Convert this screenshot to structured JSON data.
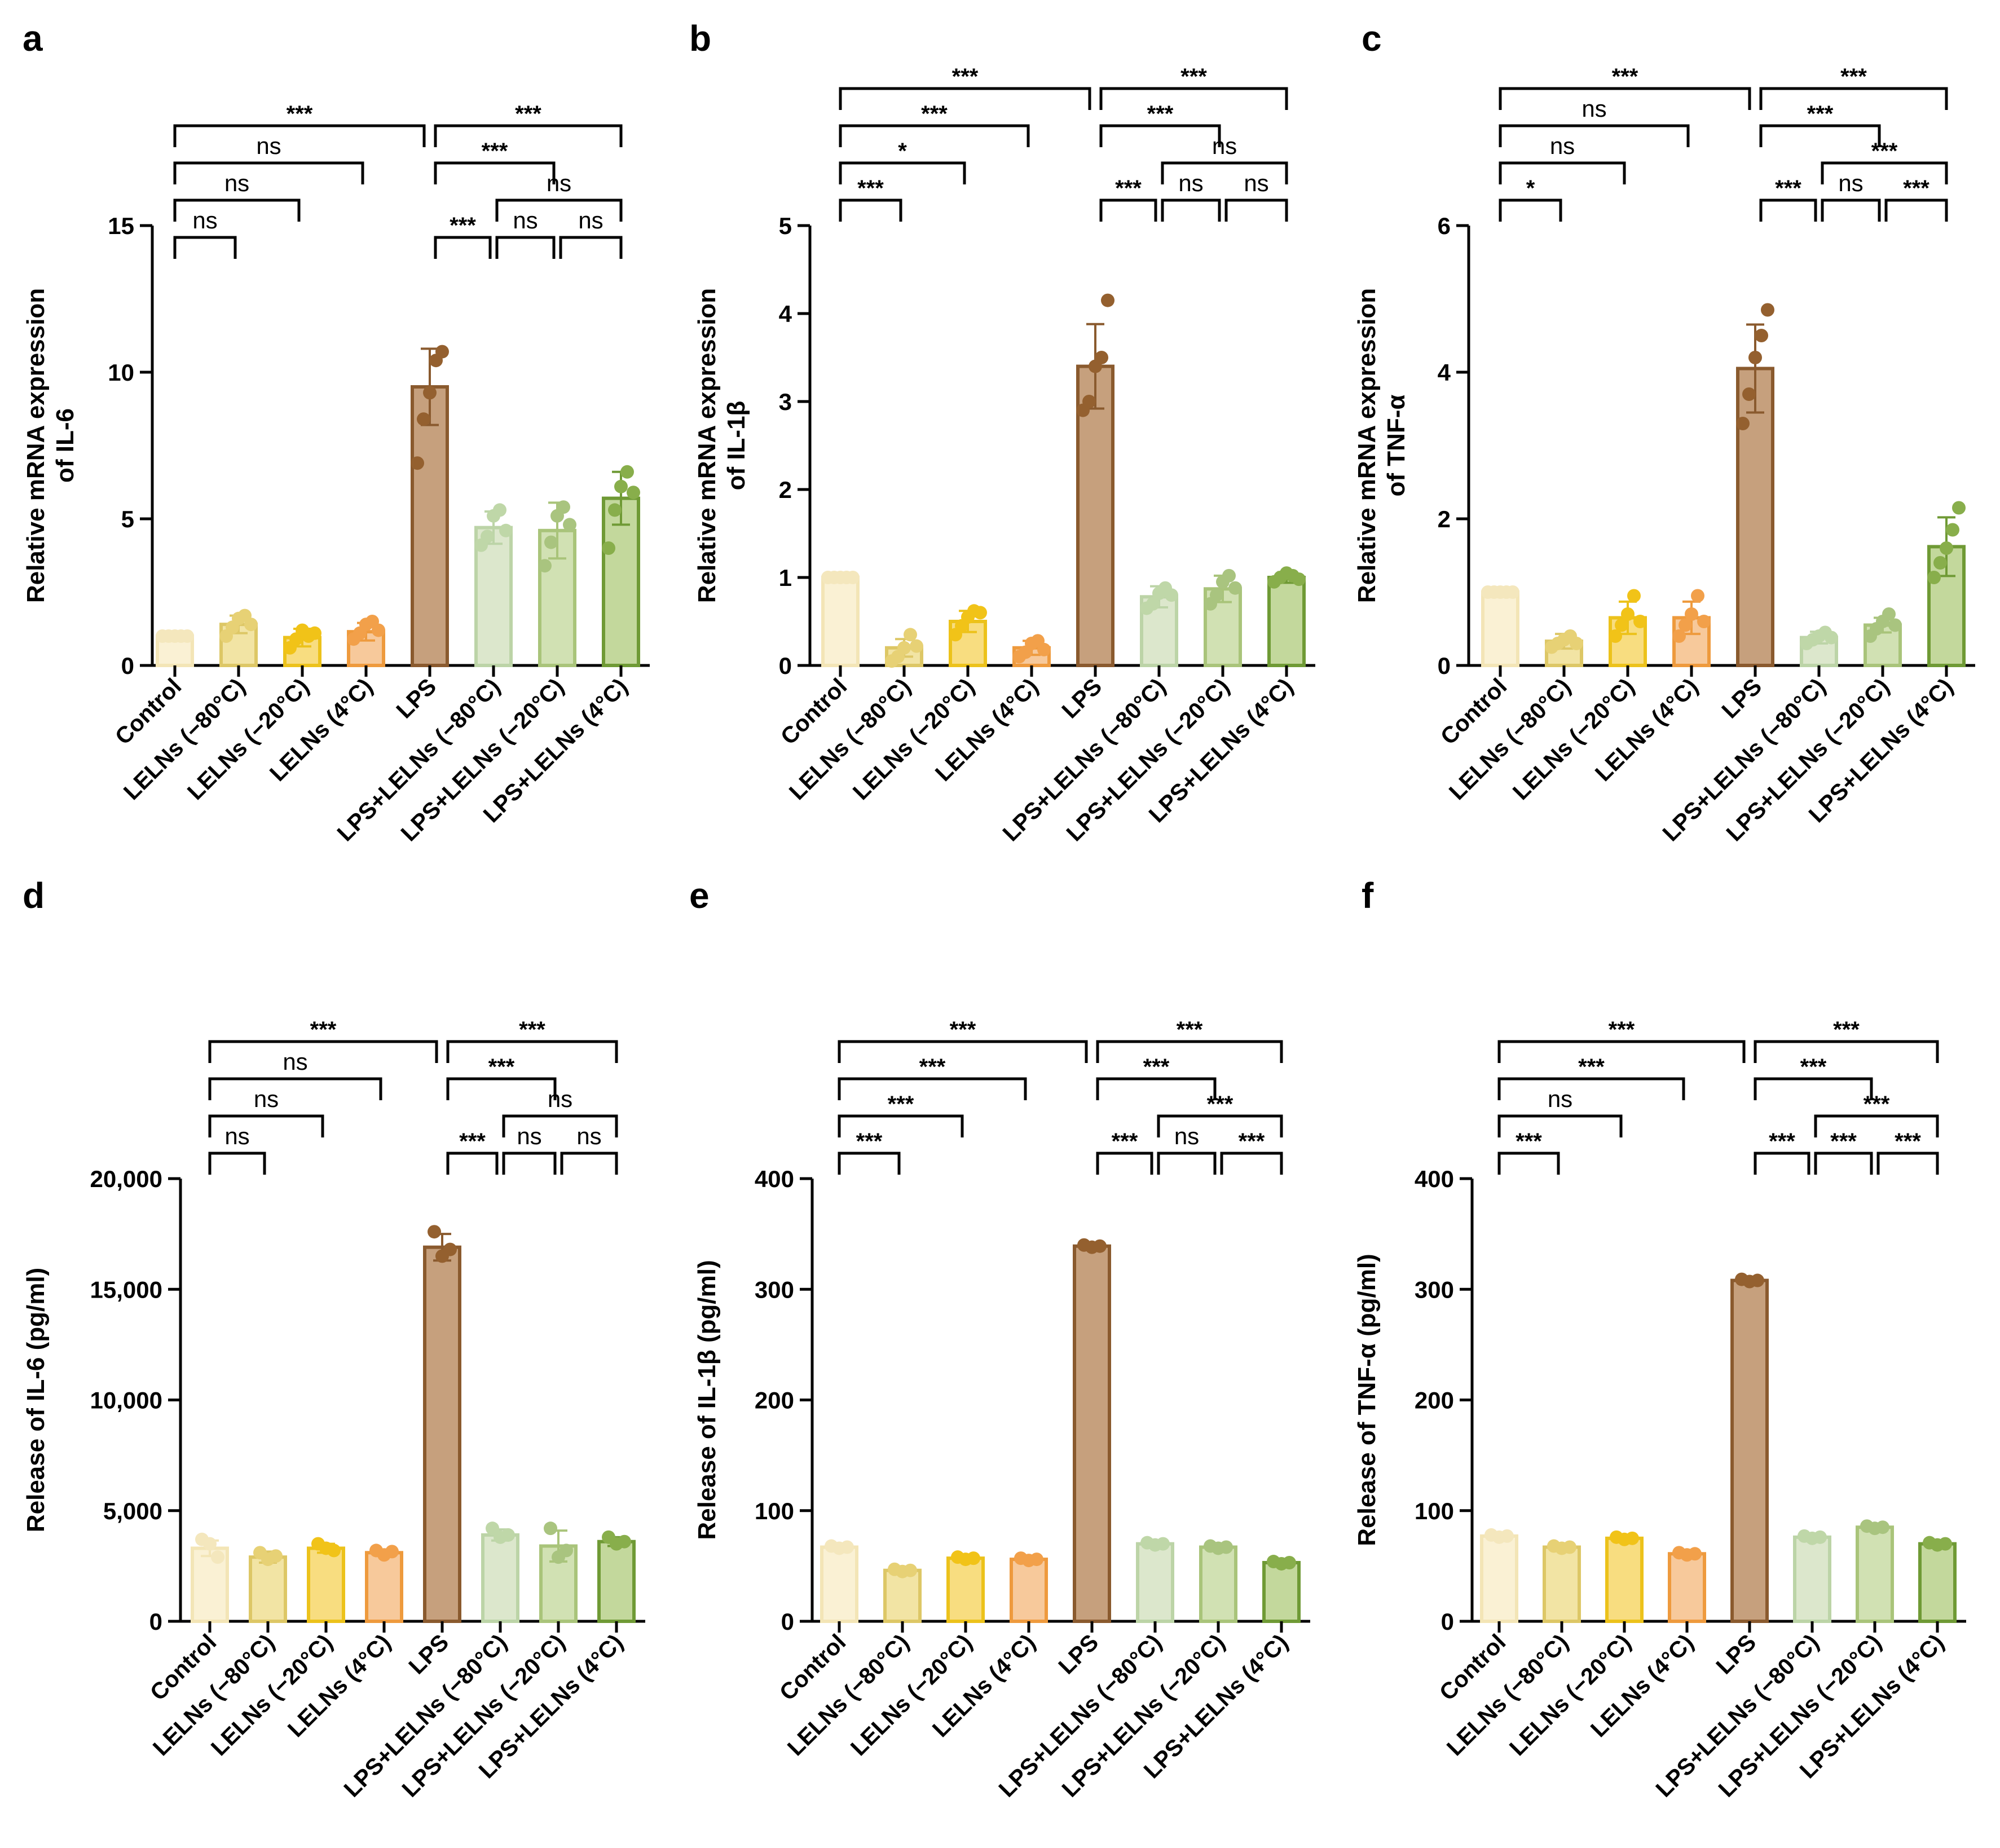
{
  "figure_title": "",
  "categories": [
    "Control",
    "LELNs (−80°C)",
    "LELNs (−20°C)",
    "LELNs (4°C)",
    "LPS",
    "LPS+LELNs (−80°C)",
    "LPS+LELNs (−20°C)",
    "LPS+LELNs (4°C)"
  ],
  "colors": {
    "fills": [
      "#faf1d4",
      "#f2e4a4",
      "#f8dd80",
      "#f7c99b",
      "#c6a07d",
      "#dce7cc",
      "#d1e1b3",
      "#c3d89c"
    ],
    "strokes": [
      "#f3e5b6",
      "#ddc766",
      "#ecc21b",
      "#ee9a3d",
      "#8a5a2e",
      "#bcd4a7",
      "#a9c47a",
      "#6f9a35"
    ],
    "dots": [
      "#f4e7bd",
      "#e7d175",
      "#f1c318",
      "#f2a04a",
      "#94602f",
      "#bfd7a8",
      "#a9c47f",
      "#88ae4b"
    ]
  },
  "chart_data": [
    {
      "type": "bar",
      "panel": "a",
      "ylabel_lines": [
        "Relative mRNA expression",
        "of IL-6"
      ],
      "ylim": [
        0,
        15
      ],
      "yticks": [
        "0",
        "5",
        "10",
        "15"
      ],
      "values": [
        1.0,
        1.4,
        0.95,
        1.15,
        9.5,
        4.7,
        4.6,
        5.7
      ],
      "errors": [
        0.05,
        0.3,
        0.3,
        0.3,
        1.3,
        0.55,
        0.95,
        0.9
      ],
      "points": [
        [
          1.0,
          1.0,
          1.0,
          1.0,
          1.0
        ],
        [
          1.0,
          1.3,
          1.6,
          1.7,
          1.4
        ],
        [
          0.6,
          0.9,
          1.2,
          1.0,
          1.1
        ],
        [
          0.9,
          1.1,
          1.4,
          1.5,
          1.2
        ],
        [
          6.9,
          8.4,
          9.3,
          10.4,
          10.7
        ],
        [
          4.1,
          4.4,
          5.1,
          5.3,
          4.6
        ],
        [
          3.4,
          4.2,
          5.1,
          5.4,
          4.8
        ],
        [
          4.0,
          5.3,
          6.1,
          6.6,
          5.9
        ]
      ],
      "comparisons": [
        {
          "a": 0,
          "b": 4,
          "level": 9,
          "label": "***"
        },
        {
          "a": 4,
          "b": 7,
          "level": 9,
          "label": "***"
        },
        {
          "a": 0,
          "b": 3,
          "level": 7,
          "label": "ns"
        },
        {
          "a": 4,
          "b": 6,
          "level": 7,
          "label": "***"
        },
        {
          "a": 0,
          "b": 2,
          "level": 5,
          "label": "ns"
        },
        {
          "a": 5,
          "b": 7,
          "level": 5,
          "label": "ns"
        },
        {
          "a": 0,
          "b": 1,
          "level": 3,
          "label": "ns"
        },
        {
          "a": 4,
          "b": 5,
          "level": 3,
          "label": "***"
        },
        {
          "a": 5,
          "b": 6,
          "level": 3,
          "label": "ns"
        },
        {
          "a": 6,
          "b": 7,
          "level": 3,
          "label": "ns"
        }
      ]
    },
    {
      "type": "bar",
      "panel": "b",
      "ylabel_lines": [
        "Relative mRNA expression",
        "of IL-1β"
      ],
      "ylim": [
        0,
        5
      ],
      "yticks": [
        "0",
        "1",
        "2",
        "3",
        "4",
        "5"
      ],
      "values": [
        1.0,
        0.2,
        0.5,
        0.2,
        3.4,
        0.78,
        0.87,
        1.0
      ],
      "errors": [
        0.02,
        0.1,
        0.12,
        0.08,
        0.48,
        0.12,
        0.15,
        0.06
      ],
      "points": [
        [
          1.0,
          1.0,
          1.0,
          1.0,
          1.0
        ],
        [
          0.05,
          0.1,
          0.2,
          0.35,
          0.22
        ],
        [
          0.35,
          0.45,
          0.55,
          0.62,
          0.6
        ],
        [
          0.1,
          0.15,
          0.25,
          0.28,
          0.18
        ],
        [
          2.9,
          3.0,
          3.4,
          3.5,
          4.15
        ],
        [
          0.65,
          0.7,
          0.82,
          0.88,
          0.8
        ],
        [
          0.7,
          0.8,
          0.95,
          1.02,
          0.88
        ],
        [
          0.95,
          1.0,
          1.05,
          1.02,
          0.98
        ]
      ],
      "comparisons": [
        {
          "a": 0,
          "b": 4,
          "level": 11,
          "label": "***"
        },
        {
          "a": 4,
          "b": 7,
          "level": 11,
          "label": "***"
        },
        {
          "a": 0,
          "b": 3,
          "level": 9,
          "label": "***"
        },
        {
          "a": 4,
          "b": 6,
          "level": 9,
          "label": "***"
        },
        {
          "a": 0,
          "b": 2,
          "level": 7,
          "label": "*"
        },
        {
          "a": 5,
          "b": 7,
          "level": 7,
          "label": "ns"
        },
        {
          "a": 0,
          "b": 1,
          "level": 5,
          "label": "***"
        },
        {
          "a": 4,
          "b": 5,
          "level": 5,
          "label": "***"
        },
        {
          "a": 5,
          "b": 6,
          "level": 5,
          "label": "ns"
        },
        {
          "a": 6,
          "b": 7,
          "level": 5,
          "label": "ns"
        }
      ]
    },
    {
      "type": "bar",
      "panel": "c",
      "ylabel_lines": [
        "Relative mRNA expression",
        "of TNF-α"
      ],
      "ylim": [
        0,
        6
      ],
      "yticks": [
        "0",
        "2",
        "4",
        "6"
      ],
      "values": [
        1.0,
        0.33,
        0.65,
        0.65,
        4.05,
        0.38,
        0.55,
        1.62
      ],
      "errors": [
        0.03,
        0.1,
        0.22,
        0.22,
        0.6,
        0.08,
        0.1,
        0.4
      ],
      "points": [
        [
          1.0,
          1.0,
          1.0,
          1.0,
          1.0
        ],
        [
          0.25,
          0.3,
          0.35,
          0.4,
          0.3
        ],
        [
          0.4,
          0.55,
          0.7,
          0.95,
          0.6
        ],
        [
          0.4,
          0.55,
          0.7,
          0.95,
          0.6
        ],
        [
          3.3,
          3.7,
          4.2,
          4.5,
          4.85
        ],
        [
          0.3,
          0.35,
          0.4,
          0.45,
          0.38
        ],
        [
          0.4,
          0.5,
          0.6,
          0.7,
          0.55
        ],
        [
          1.2,
          1.4,
          1.6,
          1.85,
          2.15
        ]
      ],
      "comparisons": [
        {
          "a": 0,
          "b": 4,
          "level": 11,
          "label": "***"
        },
        {
          "a": 4,
          "b": 7,
          "level": 11,
          "label": "***"
        },
        {
          "a": 0,
          "b": 3,
          "level": 9,
          "label": "ns"
        },
        {
          "a": 4,
          "b": 6,
          "level": 9,
          "label": "***"
        },
        {
          "a": 0,
          "b": 2,
          "level": 7,
          "label": "ns"
        },
        {
          "a": 5,
          "b": 7,
          "level": 7,
          "label": "***"
        },
        {
          "a": 0,
          "b": 1,
          "level": 5,
          "label": "*"
        },
        {
          "a": 4,
          "b": 5,
          "level": 5,
          "label": "***"
        },
        {
          "a": 5,
          "b": 6,
          "level": 5,
          "label": "ns"
        },
        {
          "a": 6,
          "b": 7,
          "level": 5,
          "label": "***"
        }
      ]
    },
    {
      "type": "bar",
      "panel": "d",
      "ylabel_lines": [
        "Release of IL-6 (pg/ml)"
      ],
      "ylim": [
        0,
        20000
      ],
      "yticks": [
        "0",
        "5,000",
        "10,000",
        "15,000",
        "20,000"
      ],
      "values": [
        3300,
        2900,
        3300,
        3100,
        16900,
        3900,
        3400,
        3600
      ],
      "errors": [
        350,
        250,
        200,
        150,
        600,
        250,
        700,
        200
      ],
      "points": [
        [
          3700,
          3500,
          2900
        ],
        [
          3100,
          2800,
          2950
        ],
        [
          3500,
          3300,
          3200
        ],
        [
          3200,
          3000,
          3150
        ],
        [
          17600,
          16500,
          16800
        ],
        [
          4200,
          3800,
          3900
        ],
        [
          4200,
          2900,
          3200
        ],
        [
          3800,
          3500,
          3600
        ]
      ],
      "comparisons": [
        {
          "a": 0,
          "b": 4,
          "level": 11,
          "label": "***"
        },
        {
          "a": 4,
          "b": 7,
          "level": 11,
          "label": "***"
        },
        {
          "a": 0,
          "b": 3,
          "level": 9,
          "label": "ns"
        },
        {
          "a": 4,
          "b": 6,
          "level": 9,
          "label": "***"
        },
        {
          "a": 0,
          "b": 2,
          "level": 7,
          "label": "ns"
        },
        {
          "a": 5,
          "b": 7,
          "level": 7,
          "label": "ns"
        },
        {
          "a": 0,
          "b": 1,
          "level": 5,
          "label": "ns"
        },
        {
          "a": 4,
          "b": 5,
          "level": 5,
          "label": "***"
        },
        {
          "a": 5,
          "b": 6,
          "level": 5,
          "label": "ns"
        },
        {
          "a": 6,
          "b": 7,
          "level": 5,
          "label": "ns"
        }
      ]
    },
    {
      "type": "bar",
      "panel": "e",
      "ylabel_lines": [
        "Release of IL-1β (pg/ml)"
      ],
      "ylim": [
        0,
        400
      ],
      "yticks": [
        "0",
        "100",
        "200",
        "300",
        "400"
      ],
      "values": [
        67,
        46,
        57,
        56,
        339,
        70,
        67,
        53
      ],
      "errors": [
        2,
        2,
        2,
        2,
        3,
        2,
        2,
        2
      ],
      "points": [
        [
          68,
          66,
          67
        ],
        [
          47,
          45,
          46
        ],
        [
          58,
          56,
          57
        ],
        [
          57,
          55,
          56
        ],
        [
          340,
          338,
          339
        ],
        [
          71,
          69,
          70
        ],
        [
          68,
          66,
          67
        ],
        [
          54,
          52,
          53
        ]
      ],
      "comparisons": [
        {
          "a": 0,
          "b": 4,
          "level": 11,
          "label": "***"
        },
        {
          "a": 4,
          "b": 7,
          "level": 11,
          "label": "***"
        },
        {
          "a": 0,
          "b": 3,
          "level": 9,
          "label": "***"
        },
        {
          "a": 4,
          "b": 6,
          "level": 9,
          "label": "***"
        },
        {
          "a": 0,
          "b": 2,
          "level": 7,
          "label": "***"
        },
        {
          "a": 5,
          "b": 7,
          "level": 7,
          "label": "***"
        },
        {
          "a": 0,
          "b": 1,
          "level": 5,
          "label": "***"
        },
        {
          "a": 4,
          "b": 5,
          "level": 5,
          "label": "***"
        },
        {
          "a": 5,
          "b": 6,
          "level": 5,
          "label": "ns"
        },
        {
          "a": 6,
          "b": 7,
          "level": 5,
          "label": "***"
        }
      ]
    },
    {
      "type": "bar",
      "panel": "f",
      "ylabel_lines": [
        "Release of TNF-α (pg/ml)"
      ],
      "ylim": [
        0,
        400
      ],
      "yticks": [
        "0",
        "100",
        "200",
        "300",
        "400"
      ],
      "values": [
        77,
        67,
        75,
        61,
        308,
        76,
        85,
        70
      ],
      "errors": [
        2,
        2,
        2,
        2,
        2,
        2,
        2,
        2
      ],
      "points": [
        [
          78,
          76,
          77
        ],
        [
          68,
          66,
          67
        ],
        [
          76,
          74,
          75
        ],
        [
          62,
          60,
          61
        ],
        [
          309,
          307,
          308
        ],
        [
          77,
          75,
          76
        ],
        [
          86,
          84,
          85
        ],
        [
          71,
          69,
          70
        ]
      ],
      "comparisons": [
        {
          "a": 0,
          "b": 4,
          "level": 11,
          "label": "***"
        },
        {
          "a": 4,
          "b": 7,
          "level": 11,
          "label": "***"
        },
        {
          "a": 0,
          "b": 3,
          "level": 9,
          "label": "***"
        },
        {
          "a": 4,
          "b": 6,
          "level": 9,
          "label": "***"
        },
        {
          "a": 0,
          "b": 2,
          "level": 7,
          "label": "ns"
        },
        {
          "a": 5,
          "b": 7,
          "level": 7,
          "label": "***"
        },
        {
          "a": 0,
          "b": 1,
          "level": 5,
          "label": "***"
        },
        {
          "a": 4,
          "b": 5,
          "level": 5,
          "label": "***"
        },
        {
          "a": 5,
          "b": 6,
          "level": 5,
          "label": "***"
        },
        {
          "a": 6,
          "b": 7,
          "level": 5,
          "label": "***"
        }
      ]
    }
  ]
}
